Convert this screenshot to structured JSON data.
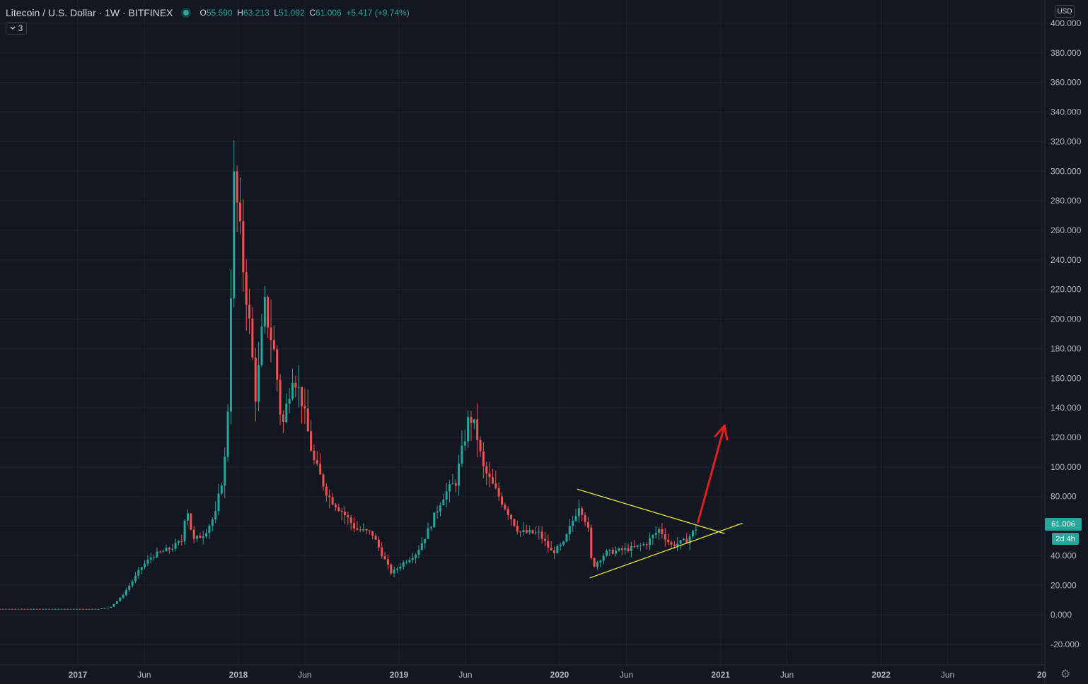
{
  "legend": {
    "symbol": "Litecoin / U.S. Dollar",
    "interval": "1W",
    "exchange": "BITFINEX",
    "sep": "·",
    "open_label": "O",
    "open": "55.590",
    "high_label": "H",
    "high": "63.213",
    "low_label": "L",
    "low": "51.092",
    "close_label": "C",
    "close": "61.006",
    "change": "+5.417 (+9.74%)"
  },
  "indicators_toggle": {
    "icon": "chevron-down-icon",
    "count": "3"
  },
  "currency_button": "USD",
  "last_price_label": "61.006",
  "countdown_label": "2d 4h",
  "settings_icon": "gear-icon",
  "colors": {
    "background": "#131722",
    "up": "#26a69a",
    "down": "#ef5350",
    "grid": "#1e222d",
    "axis_text": "#b2b5be",
    "trendline": "#e8e83a",
    "arrow": "#e02020"
  },
  "chart_data": {
    "type": "candlestick",
    "grid": true,
    "price_scale_side": "right",
    "ylim": [
      -20,
      400
    ],
    "y_ticks": [
      "400.000",
      "380.000",
      "360.000",
      "340.000",
      "320.000",
      "300.000",
      "280.000",
      "260.000",
      "240.000",
      "220.000",
      "200.000",
      "180.000",
      "160.000",
      "140.000",
      "120.000",
      "100.000",
      "80.000",
      "60.000",
      "40.000",
      "20.000",
      "0.000",
      "-20.000"
    ],
    "y_tick_values": [
      400,
      380,
      360,
      340,
      320,
      300,
      280,
      260,
      240,
      220,
      200,
      180,
      160,
      140,
      120,
      100,
      80,
      60,
      40,
      20,
      0,
      -20
    ],
    "x_ticks": [
      {
        "label": "2017",
        "date": "2017-01-01",
        "bold": true
      },
      {
        "label": "Jun",
        "date": "2017-06-01",
        "bold": false
      },
      {
        "label": "2018",
        "date": "2018-01-01",
        "bold": true
      },
      {
        "label": "Jun",
        "date": "2018-06-01",
        "bold": false
      },
      {
        "label": "2019",
        "date": "2019-01-01",
        "bold": true
      },
      {
        "label": "Jun",
        "date": "2019-06-01",
        "bold": false
      },
      {
        "label": "2020",
        "date": "2020-01-01",
        "bold": true
      },
      {
        "label": "Jun",
        "date": "2020-06-01",
        "bold": false
      },
      {
        "label": "2021",
        "date": "2021-01-01",
        "bold": true
      },
      {
        "label": "Jun",
        "date": "2021-06-01",
        "bold": false
      },
      {
        "label": "2022",
        "date": "2022-01-01",
        "bold": true
      },
      {
        "label": "Jun",
        "date": "2022-06-01",
        "bold": false
      },
      {
        "label": "20",
        "date": "2023-01-01",
        "bold": true
      }
    ],
    "price_anchors": [
      [
        "2016-04-01",
        4
      ],
      [
        "2017-02-15",
        4
      ],
      [
        "2017-03-15",
        5
      ],
      [
        "2017-04-10",
        12
      ],
      [
        "2017-05-10",
        25
      ],
      [
        "2017-05-25",
        32
      ],
      [
        "2017-06-20",
        40
      ],
      [
        "2017-08-01",
        45
      ],
      [
        "2017-08-25",
        50
      ],
      [
        "2017-09-05",
        75
      ],
      [
        "2017-09-20",
        50
      ],
      [
        "2017-10-15",
        55
      ],
      [
        "2017-11-10",
        68
      ],
      [
        "2017-11-30",
        100
      ],
      [
        "2017-12-12",
        160
      ],
      [
        "2017-12-19",
        300
      ],
      [
        "2018-01-01",
        270
      ],
      [
        "2018-01-10",
        240
      ],
      [
        "2018-01-25",
        200
      ],
      [
        "2018-02-10",
        145
      ],
      [
        "2018-03-01",
        210
      ],
      [
        "2018-03-25",
        175
      ],
      [
        "2018-04-10",
        125
      ],
      [
        "2018-05-05",
        165
      ],
      [
        "2018-05-25",
        145
      ],
      [
        "2018-06-20",
        105
      ],
      [
        "2018-07-25",
        80
      ],
      [
        "2018-08-25",
        70
      ],
      [
        "2018-09-25",
        58
      ],
      [
        "2018-11-01",
        55
      ],
      [
        "2018-11-25",
        40
      ],
      [
        "2018-12-15",
        28
      ],
      [
        "2019-01-10",
        35
      ],
      [
        "2019-02-10",
        42
      ],
      [
        "2019-03-10",
        58
      ],
      [
        "2019-04-10",
        80
      ],
      [
        "2019-05-10",
        90
      ],
      [
        "2019-06-10",
        135
      ],
      [
        "2019-06-25",
        125
      ],
      [
        "2019-07-10",
        100
      ],
      [
        "2019-08-01",
        88
      ],
      [
        "2019-09-01",
        72
      ],
      [
        "2019-10-01",
        56
      ],
      [
        "2019-11-15",
        55
      ],
      [
        "2019-12-15",
        42
      ],
      [
        "2020-01-10",
        48
      ],
      [
        "2020-02-15",
        75
      ],
      [
        "2020-03-05",
        60
      ],
      [
        "2020-03-15",
        32
      ],
      [
        "2020-04-15",
        42
      ],
      [
        "2020-06-15",
        45
      ],
      [
        "2020-07-15",
        48
      ],
      [
        "2020-08-15",
        58
      ],
      [
        "2020-09-10",
        47
      ],
      [
        "2020-10-15",
        50
      ],
      [
        "2020-11-12",
        61
      ]
    ],
    "trendlines": [
      {
        "from": [
          "2020-02-10",
          85
        ],
        "to": [
          "2021-01-10",
          55
        ]
      },
      {
        "from": [
          "2020-03-10",
          25
        ],
        "to": [
          "2021-02-20",
          62
        ]
      }
    ],
    "projection_arrow": {
      "from": [
        "2020-11-10",
        62
      ],
      "to": [
        "2021-01-10",
        128
      ]
    }
  }
}
